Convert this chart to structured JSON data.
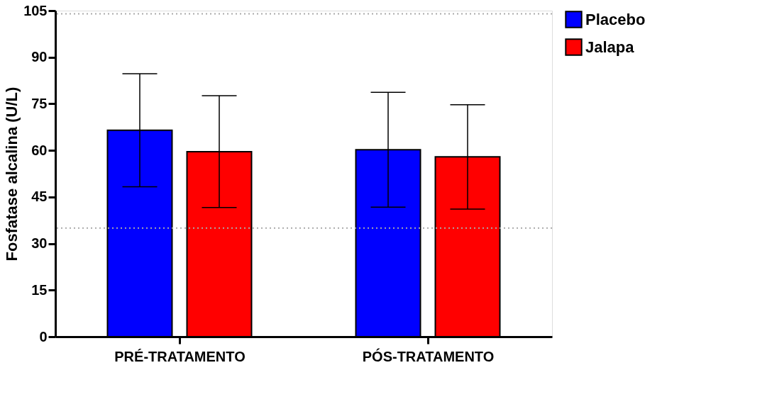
{
  "chart_data": {
    "type": "bar",
    "ylabel": "Fosfatase alcalina (U/L)",
    "categories": [
      "PRÉ-TRATAMENTO",
      "PÓS-TRATAMENTO"
    ],
    "series": [
      {
        "name": "Placebo",
        "color": "#0000ff",
        "values": [
          66.5,
          60.2
        ],
        "errors": [
          18.2,
          18.5
        ]
      },
      {
        "name": "Jalapa",
        "color": "#ff0000",
        "values": [
          59.6,
          57.9
        ],
        "errors": [
          18,
          16.8
        ]
      }
    ],
    "ylim": [
      0,
      105
    ],
    "yticks": [
      0,
      15,
      30,
      45,
      60,
      75,
      90,
      105
    ],
    "grid": false,
    "legend": "top right",
    "ref_lines": [
      {
        "axis": "y",
        "value": 104,
        "color": "#aaaaaa",
        "line_style": "dotted"
      },
      {
        "axis": "y",
        "value": 35,
        "color": "#aaaaaa",
        "line_style": "dotted"
      }
    ]
  }
}
